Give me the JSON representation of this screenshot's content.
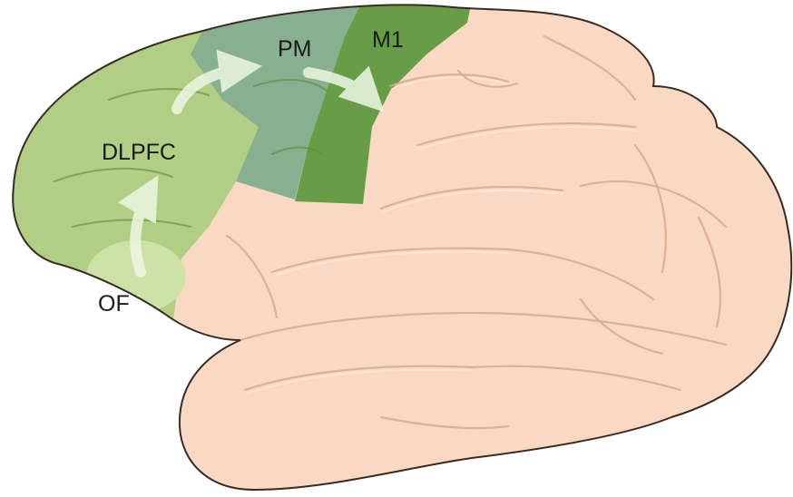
{
  "figure": {
    "labels": {
      "dlpfc": "DLPFC",
      "pm": "PM",
      "m1": "M1",
      "of": "OF"
    },
    "colors": {
      "cortex": "#f9d9c4",
      "cortex_outline": "#3a2a22",
      "frontal_light_green": "#a9cd7e",
      "orbitofrontal_pale_green": "#cfe3a8",
      "premotor_teal_green": "#7fae8d",
      "motor_dark_green": "#5f9a3f",
      "arrow": "#e6f2d6"
    }
  }
}
